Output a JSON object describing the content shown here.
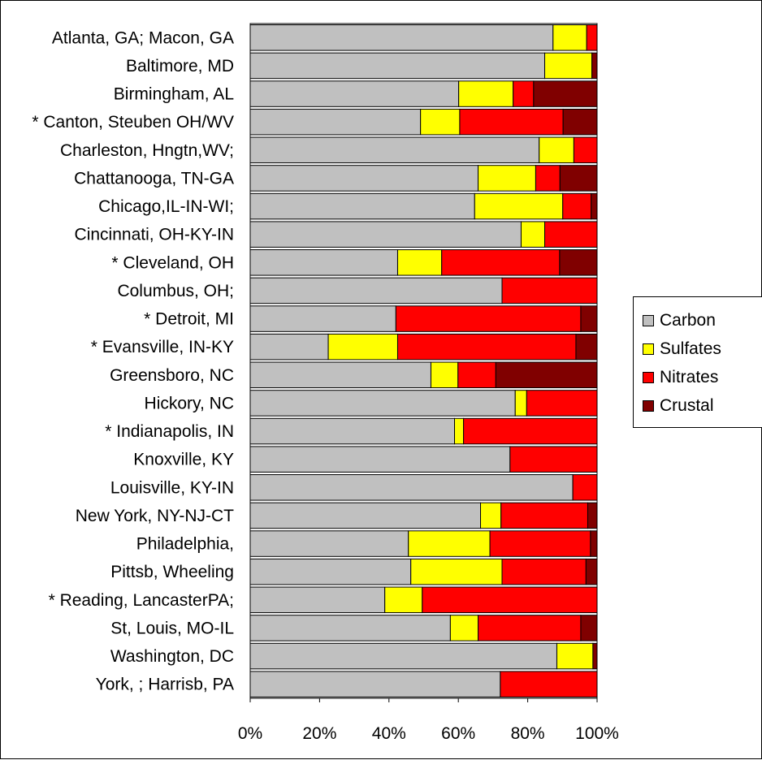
{
  "chart_data": {
    "type": "bar",
    "orientation": "horizontal",
    "stacked": "percent",
    "categories": [
      "Atlanta, GA; Macon, GA",
      "Baltimore, MD",
      "Birmingham, AL",
      "* Canton, Steuben OH/WV",
      "Charleston, Hngtn,WV;",
      "Chattanooga, TN-GA",
      "Chicago,IL-IN-WI;",
      "Cincinnati, OH-KY-IN",
      "* Cleveland, OH",
      "Columbus, OH;",
      "* Detroit, MI",
      "* Evansville, IN-KY",
      "Greensboro, NC",
      "Hickory, NC",
      "* Indianapolis, IN",
      "Knoxville, KY",
      "Louisville, KY-IN",
      "New York, NY-NJ-CT",
      "Philadelphia,",
      "Pittsb, Wheeling",
      "* Reading,  LancasterPA;",
      "St, Louis, MO-IL",
      "Washington, DC",
      "York, ; Harrisb, PA"
    ],
    "series": [
      {
        "name": "Carbon",
        "color": "#c0c0c0",
        "values": [
          87.3,
          84.9,
          60.1,
          49.1,
          83.3,
          65.7,
          64.7,
          78.1,
          42.5,
          72.6,
          42.0,
          22.5,
          52.1,
          76.4,
          58.9,
          74.9,
          93.0,
          66.4,
          45.6,
          46.3,
          38.8,
          57.7,
          88.4,
          72.1
        ]
      },
      {
        "name": "Sulfates",
        "color": "#ffff00",
        "values": [
          9.7,
          13.6,
          15.7,
          11.3,
          10.0,
          16.6,
          25.4,
          6.8,
          12.7,
          0.0,
          0.0,
          20.0,
          7.8,
          3.3,
          2.6,
          0.0,
          0.0,
          5.9,
          23.5,
          26.3,
          10.8,
          8.0,
          10.4,
          0.0
        ]
      },
      {
        "name": "Nitrates",
        "color": "#ff0000",
        "values": [
          3.0,
          0.0,
          5.9,
          29.8,
          6.7,
          7.0,
          8.2,
          15.1,
          34.0,
          27.4,
          53.3,
          51.4,
          10.9,
          20.3,
          38.5,
          25.1,
          7.0,
          25.0,
          29.0,
          24.2,
          50.4,
          29.6,
          0.0,
          27.9
        ]
      },
      {
        "name": "Crustal",
        "color": "#800000",
        "values": [
          0.0,
          1.5,
          18.3,
          9.8,
          0.0,
          10.7,
          1.7,
          0.0,
          10.8,
          0.0,
          4.7,
          6.1,
          29.2,
          0.0,
          0.0,
          0.0,
          0.0,
          2.7,
          1.9,
          3.2,
          0.0,
          4.7,
          1.2,
          0.0
        ]
      }
    ],
    "xlim": [
      0,
      100
    ],
    "x_ticks": [
      "0%",
      "20%",
      "40%",
      "60%",
      "80%",
      "100%"
    ],
    "grid": false,
    "legend_position": "right"
  }
}
